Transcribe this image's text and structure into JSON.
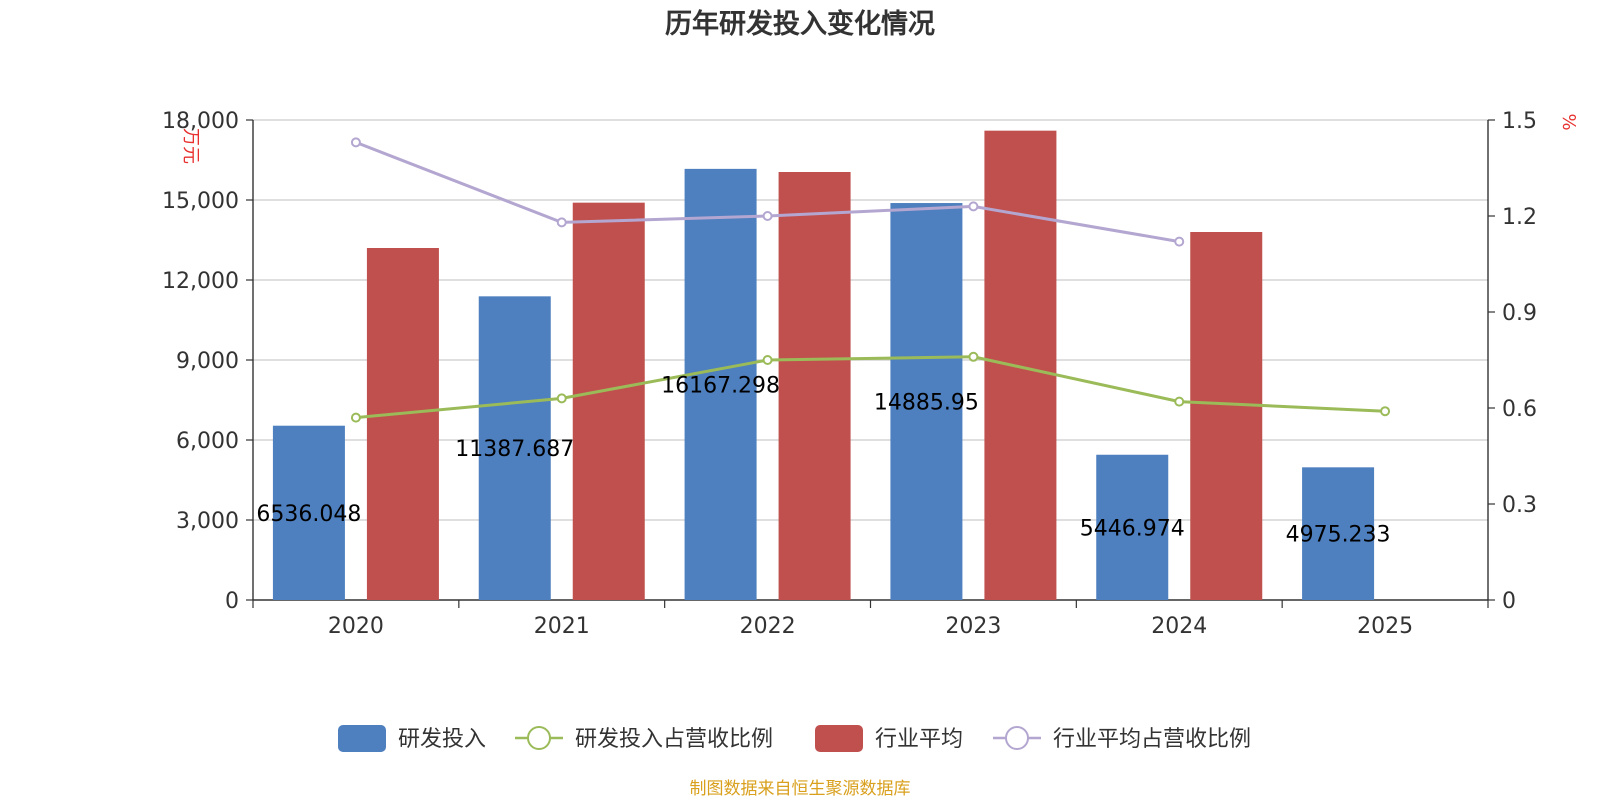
{
  "chart_data": {
    "type": "bar",
    "title": "历年研发投入变化情况",
    "categories": [
      "2020",
      "2021",
      "2022",
      "2023",
      "2024",
      "2025"
    ],
    "y_left": {
      "unit": "万元",
      "min": 0,
      "max": 18000,
      "ticks": [
        "0",
        "3,000",
        "6,000",
        "9,000",
        "12,000",
        "15,000",
        "18,000"
      ]
    },
    "y_right": {
      "unit": "%",
      "min": 0,
      "max": 1.5,
      "ticks": [
        "0",
        "0.3",
        "0.6",
        "0.9",
        "1.2",
        "1.5"
      ]
    },
    "series": [
      {
        "name": "研发投入",
        "kind": "bar",
        "axis": "left",
        "color": "#4e7fbe",
        "values": [
          6536.048,
          11387.687,
          16167.298,
          14885.95,
          5446.974,
          4975.233
        ],
        "labels": [
          "6536.048",
          "11387.687",
          "16167.298",
          "14885.95",
          "5446.974",
          "4975.233"
        ]
      },
      {
        "name": "研发投入占营收比例",
        "kind": "line",
        "axis": "right",
        "color": "#9bbb59",
        "values": [
          0.57,
          0.63,
          0.75,
          0.76,
          0.62,
          0.59
        ]
      },
      {
        "name": "行业平均",
        "kind": "bar",
        "axis": "left",
        "color": "#c0504d",
        "values": [
          13200,
          14900,
          16050,
          17600,
          13800,
          null
        ]
      },
      {
        "name": "行业平均占营收比例",
        "kind": "line",
        "axis": "right",
        "color": "#b3a6d0",
        "values": [
          1.43,
          1.18,
          1.2,
          1.23,
          1.12,
          null
        ]
      }
    ],
    "grid": true,
    "legend": "bottom",
    "source": "制图数据来自恒生聚源数据库"
  }
}
